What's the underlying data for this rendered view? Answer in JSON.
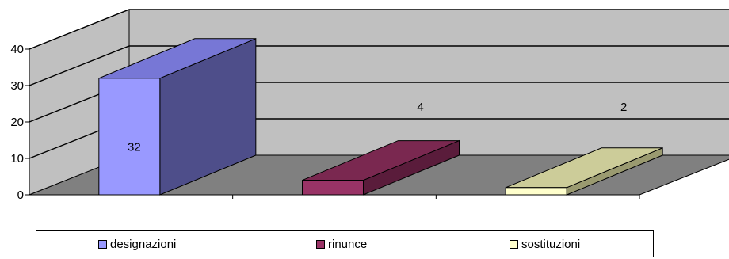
{
  "chart_data": {
    "type": "bar",
    "three_d": true,
    "categories": [
      "designazioni",
      "rinunce",
      "sostituzioni"
    ],
    "values": [
      32,
      4,
      2
    ],
    "data_labels": [
      "32",
      "4",
      "2"
    ],
    "ylim": [
      0,
      40
    ],
    "yticks": [
      "0",
      "10",
      "20",
      "30",
      "40"
    ],
    "grid": true,
    "legend_position": "bottom",
    "colors": {
      "designazioni": {
        "front": "#9999ff",
        "top": "#7777d6",
        "side": "#4e4e8a"
      },
      "rinunce": {
        "front": "#993366",
        "top": "#7a2850",
        "side": "#5a1c3b"
      },
      "sostituzioni": {
        "front": "#ffffcc",
        "top": "#cccc99",
        "side": "#9a9a70"
      },
      "wall": "#c0c0c0",
      "floor": "#808080"
    }
  },
  "legend": {
    "items": [
      {
        "label": "designazioni",
        "color": "#9999ff"
      },
      {
        "label": "rinunce",
        "color": "#993366"
      },
      {
        "label": "sostituzioni",
        "color": "#ffffcc"
      }
    ]
  }
}
